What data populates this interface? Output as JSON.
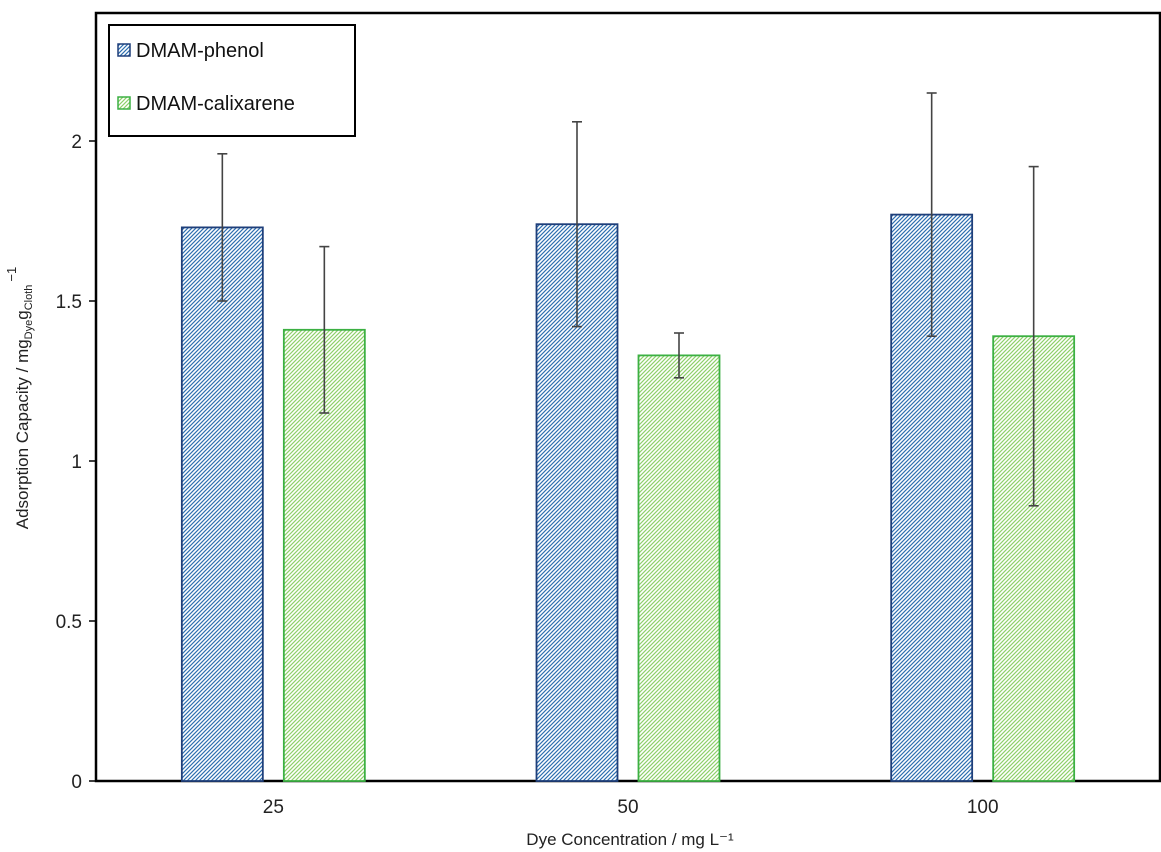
{
  "chart_data": {
    "type": "bar",
    "categories": [
      "25",
      "50",
      "100"
    ],
    "series": [
      {
        "name": "DMAM-phenol",
        "values": [
          1.73,
          1.74,
          1.77
        ],
        "error_low": [
          1.5,
          1.42,
          1.39
        ],
        "error_high": [
          1.96,
          2.06,
          2.15
        ],
        "fill_color": "#2e6fb0",
        "border_color": "#1f3f7a",
        "pattern": "diagonal-hatch"
      },
      {
        "name": "DMAM-calixarene",
        "values": [
          1.41,
          1.33,
          1.39
        ],
        "error_low": [
          1.15,
          1.26,
          0.86
        ],
        "error_high": [
          1.67,
          1.4,
          1.92
        ],
        "fill_color": "#8fd06a",
        "border_color": "#3cb043",
        "pattern": "diagonal-hatch"
      }
    ],
    "xlabel": "Dye Concentration / mg L⁻¹",
    "ylabel": {
      "main": "Adsorption Capacity / mg",
      "sub1": "Dye",
      "mid": "g",
      "sub2": "Cloth",
      "sup": "−1"
    },
    "y_ticks": [
      "0",
      "0.5",
      "1",
      "1.5",
      "2"
    ],
    "ylim": [
      0,
      2.4
    ],
    "grid": false,
    "legend_position": "top-left",
    "error_bar_color": "#444444"
  }
}
